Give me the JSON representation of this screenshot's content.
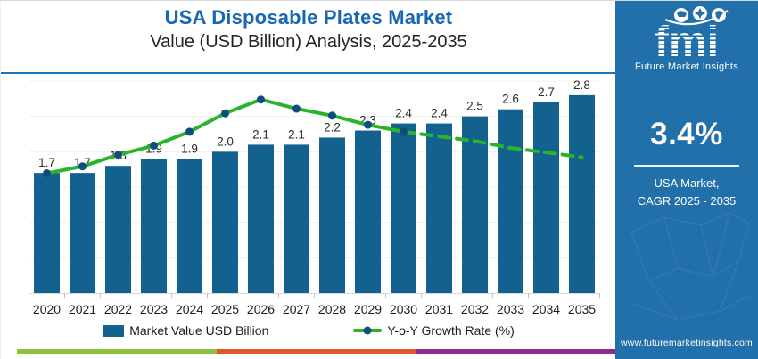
{
  "header": {
    "title": "USA Disposable Plates Market",
    "subtitle": "Value (USD Billion) Analysis, 2025-2035",
    "title_color": "#1767B1",
    "divider_color": "#1B74B8"
  },
  "chart_data": {
    "type": "bar+line combo",
    "categories": [
      "2020",
      "2021",
      "2022",
      "2023",
      "2024",
      "2025",
      "2026",
      "2027",
      "2028",
      "2029",
      "2030",
      "2031",
      "2032",
      "2033",
      "2034",
      "2035"
    ],
    "series": [
      {
        "name": "Market Value USD Billion",
        "type": "bar",
        "values": [
          1.7,
          1.7,
          1.8,
          1.9,
          1.9,
          2.0,
          2.1,
          2.1,
          2.2,
          2.3,
          2.4,
          2.4,
          2.5,
          2.6,
          2.7,
          2.8
        ],
        "color": "#12618E",
        "data_labels_shown": true
      },
      {
        "name": "Y-o-Y Growth Rate (%)",
        "type": "line",
        "values_estimated_pct": [
          1.6,
          1.9,
          2.4,
          2.8,
          3.4,
          4.2,
          4.8,
          4.4,
          4.1,
          3.7,
          3.4,
          3.2,
          3.0,
          2.7,
          2.5,
          2.3
        ],
        "color": "#2BB32B",
        "marker_color": "#0D4E7E",
        "solid_until_index": 10,
        "style_after": "dashed",
        "markers_until_index": 10
      }
    ],
    "title": "USA Disposable Plates Market",
    "subtitle": "Value (USD Billion) Analysis, 2025-2035",
    "xlabel": "",
    "ylabel": "",
    "ylim": [
      0,
      3
    ],
    "y2lim": [
      -3.6,
      5.6
    ],
    "grid": "faint horizontal gridlines, no visible y-axis labels",
    "legend_position": "bottom",
    "value_label_format": "one decimal"
  },
  "legend": {
    "bar_label": "Market Value USD Billion",
    "line_label": "Y-o-Y Growth Rate (%)"
  },
  "side_panel": {
    "bg_color": "#2170A9",
    "logo": {
      "text": "fmi",
      "tagline": "Future Market Insights",
      "icons": [
        "usa-map-icon",
        "compass-icon",
        "globe-americas-icon"
      ]
    },
    "cagr_value": "3.4%",
    "caption_line1": "USA Market,",
    "caption_line2": "CAGR 2025 - 2035",
    "website": "www.futuremarketinsights.com"
  },
  "footer_strip": {
    "colors": [
      "#90C13C",
      "#E0562A",
      "#8E2B8E"
    ]
  }
}
